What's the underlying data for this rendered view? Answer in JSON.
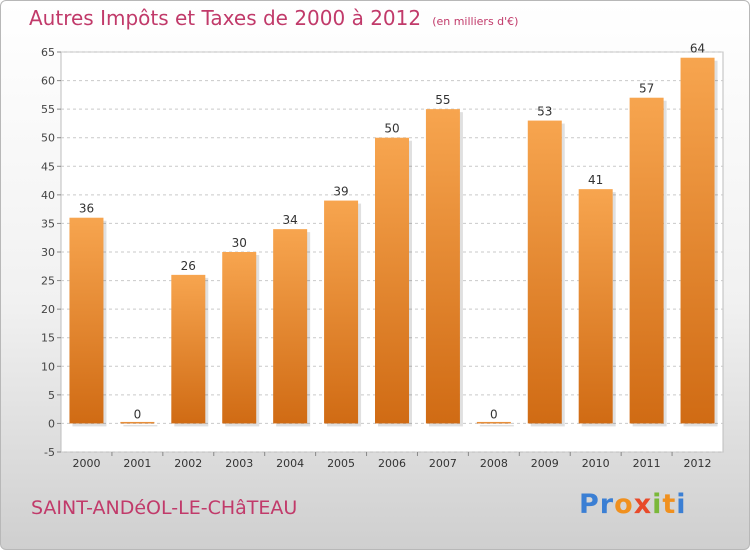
{
  "chart_data": {
    "type": "bar",
    "title": "Autres Impôts et Taxes de 2000 à 2012",
    "unit_note": "(en milliers d'€)",
    "categories": [
      "2000",
      "2001",
      "2002",
      "2003",
      "2004",
      "2005",
      "2006",
      "2007",
      "2008",
      "2009",
      "2010",
      "2011",
      "2012"
    ],
    "values": [
      36,
      0,
      26,
      30,
      34,
      39,
      50,
      55,
      0,
      53,
      41,
      57,
      64
    ],
    "data_labels": [
      "36",
      "0",
      "26",
      "30",
      "34",
      "39",
      "50",
      "55",
      "0",
      "53",
      "41",
      "57",
      "64"
    ],
    "xlabel": "",
    "ylabel": "",
    "ylim": [
      -5,
      65
    ],
    "y_ticks": [
      -5,
      0,
      5,
      10,
      15,
      20,
      25,
      30,
      35,
      40,
      45,
      50,
      55,
      60,
      65
    ],
    "grid": "horizontal dashed",
    "legend": "none",
    "bar_color_top": "#f7a54f",
    "bar_color_bottom": "#d06b14"
  },
  "footer": {
    "town": "SAINT-ANDéOL-LE-CHâTEAU",
    "brand_letters": [
      "P",
      "r",
      "o",
      "x",
      "i",
      "t",
      "i"
    ],
    "brand_colors": [
      "#3b7fd4",
      "#3b7fd4",
      "#f0901e",
      "#e84a2a",
      "#7ab83a",
      "#f0901e",
      "#3b7fd4"
    ]
  }
}
